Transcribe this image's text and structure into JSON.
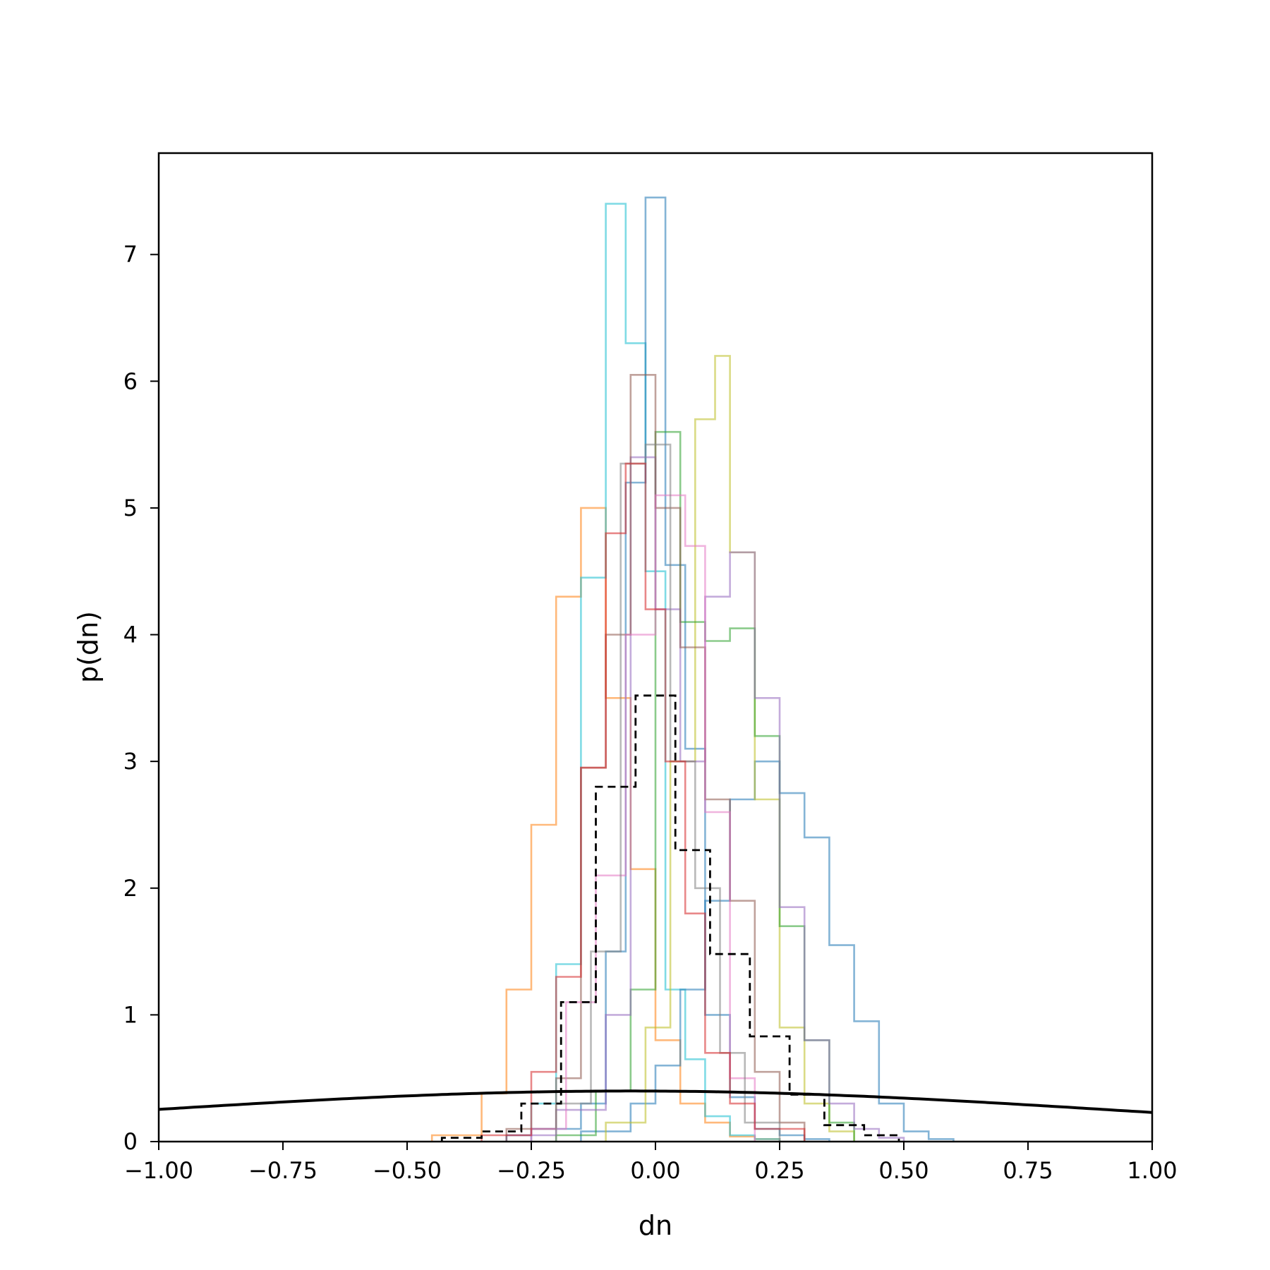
{
  "chart_data": {
    "type": "step-histogram",
    "xlabel": "dn",
    "ylabel": "p(dn)",
    "xlim": [
      -1.0,
      1.0
    ],
    "ylim": [
      0,
      7.8
    ],
    "grid": false,
    "legend": "none",
    "x_ticks": [
      {
        "value": -1.0,
        "label": "−1.00"
      },
      {
        "value": -0.75,
        "label": "−0.75"
      },
      {
        "value": -0.5,
        "label": "−0.50"
      },
      {
        "value": -0.25,
        "label": "−0.25"
      },
      {
        "value": 0.0,
        "label": "0.00"
      },
      {
        "value": 0.25,
        "label": "0.25"
      },
      {
        "value": 0.5,
        "label": "0.50"
      },
      {
        "value": 0.75,
        "label": "0.75"
      },
      {
        "value": 1.0,
        "label": "1.00"
      }
    ],
    "y_ticks": [
      {
        "value": 0,
        "label": "0"
      },
      {
        "value": 1,
        "label": "1"
      },
      {
        "value": 2,
        "label": "2"
      },
      {
        "value": 3,
        "label": "3"
      },
      {
        "value": 4,
        "label": "4"
      },
      {
        "value": 5,
        "label": "5"
      },
      {
        "value": 6,
        "label": "6"
      },
      {
        "value": 7,
        "label": "7"
      }
    ],
    "prior_curve": {
      "type": "normal",
      "mean": -0.05,
      "sd": 1.0,
      "color": "#000000"
    },
    "combined_histogram": {
      "color": "#000000",
      "style": "dashed",
      "edges": [
        -0.43,
        -0.35,
        -0.27,
        -0.19,
        -0.12,
        -0.04,
        0.04,
        0.11,
        0.19,
        0.27,
        0.34,
        0.42,
        0.49
      ],
      "values": [
        0.03,
        0.08,
        0.3,
        1.1,
        2.8,
        3.52,
        2.3,
        1.48,
        0.83,
        0.37,
        0.13,
        0.05
      ]
    },
    "series": [
      {
        "color": "#ff7f0e",
        "edges": [
          -0.45,
          -0.35,
          -0.3,
          -0.25,
          -0.2,
          -0.15,
          -0.1,
          -0.05,
          0.0,
          0.05,
          0.1,
          0.15,
          0.2,
          0.25
        ],
        "values": [
          0.05,
          0.38,
          1.2,
          2.5,
          4.3,
          5.0,
          3.5,
          2.15,
          0.8,
          0.3,
          0.15,
          0.04,
          0.02
        ]
      },
      {
        "color": "#17becf",
        "edges": [
          -0.3,
          -0.25,
          -0.2,
          -0.15,
          -0.1,
          -0.06,
          -0.02,
          0.02,
          0.06,
          0.1,
          0.15,
          0.2,
          0.25
        ],
        "values": [
          0.05,
          0.3,
          1.4,
          4.45,
          7.4,
          6.3,
          4.5,
          1.2,
          0.65,
          0.2,
          0.05,
          0.02
        ]
      },
      {
        "color": "#1f77b4",
        "edges": [
          -0.25,
          -0.15,
          -0.1,
          -0.06,
          -0.02,
          0.02,
          0.06,
          0.1,
          0.15,
          0.2,
          0.25,
          0.3,
          0.35
        ],
        "values": [
          0.1,
          0.3,
          1.5,
          5.2,
          7.45,
          4.55,
          3.1,
          1.0,
          0.35,
          0.1,
          0.05,
          0.02
        ]
      },
      {
        "color": "#1f77b4",
        "edges": [
          -0.15,
          -0.05,
          0.0,
          0.05,
          0.1,
          0.15,
          0.2,
          0.25,
          0.3,
          0.35,
          0.4,
          0.45,
          0.5,
          0.55,
          0.6
        ],
        "values": [
          0.08,
          0.3,
          0.6,
          1.2,
          1.9,
          2.7,
          3.0,
          2.75,
          2.4,
          1.55,
          0.95,
          0.3,
          0.08,
          0.02
        ]
      },
      {
        "color": "#bcbd22",
        "edges": [
          -0.1,
          -0.02,
          0.03,
          0.08,
          0.12,
          0.15,
          0.2,
          0.25,
          0.3,
          0.35,
          0.4
        ],
        "values": [
          0.15,
          0.9,
          3.0,
          5.7,
          6.2,
          4.65,
          2.7,
          0.9,
          0.3,
          0.08
        ]
      },
      {
        "color": "#2ca02c",
        "edges": [
          -0.2,
          -0.12,
          -0.05,
          0.0,
          0.05,
          0.1,
          0.15,
          0.2,
          0.25,
          0.3,
          0.35,
          0.4
        ],
        "values": [
          0.05,
          0.4,
          1.2,
          5.6,
          4.1,
          3.95,
          4.05,
          3.2,
          1.7,
          0.8,
          0.15
        ]
      },
      {
        "color": "#9467bd",
        "edges": [
          -0.3,
          -0.2,
          -0.1,
          -0.05,
          0.0,
          0.05,
          0.1,
          0.15,
          0.2,
          0.25,
          0.3,
          0.35,
          0.4,
          0.45,
          0.5
        ],
        "values": [
          0.05,
          0.25,
          1.0,
          5.4,
          4.2,
          3.0,
          4.3,
          4.65,
          3.5,
          1.85,
          0.8,
          0.3,
          0.1,
          0.03
        ]
      },
      {
        "color": "#8c564b",
        "edges": [
          -0.3,
          -0.2,
          -0.15,
          -0.1,
          -0.05,
          0.0,
          0.05,
          0.1,
          0.15,
          0.2,
          0.25,
          0.3
        ],
        "values": [
          0.1,
          0.5,
          2.95,
          4.0,
          6.05,
          5.0,
          3.9,
          2.7,
          1.9,
          0.55,
          0.15
        ]
      },
      {
        "color": "#e377c2",
        "edges": [
          -0.25,
          -0.18,
          -0.12,
          -0.06,
          0.0,
          0.06,
          0.1,
          0.15,
          0.2
        ],
        "values": [
          0.1,
          1.1,
          2.1,
          4.0,
          5.1,
          4.7,
          2.6,
          0.5
        ]
      },
      {
        "color": "#7f7f7f",
        "edges": [
          -0.2,
          -0.13,
          -0.07,
          -0.02,
          0.03,
          0.08,
          0.13,
          0.18,
          0.25
        ],
        "values": [
          0.3,
          1.5,
          5.35,
          5.5,
          3.0,
          2.0,
          0.7,
          0.15
        ]
      },
      {
        "color": "#d62728",
        "edges": [
          -0.35,
          -0.25,
          -0.2,
          -0.15,
          -0.1,
          -0.06,
          -0.02,
          0.02,
          0.06,
          0.1,
          0.15,
          0.2,
          0.3
        ],
        "values": [
          0.05,
          0.55,
          1.3,
          2.95,
          4.8,
          5.35,
          4.2,
          3.0,
          1.8,
          0.7,
          0.3,
          0.1
        ]
      }
    ]
  }
}
